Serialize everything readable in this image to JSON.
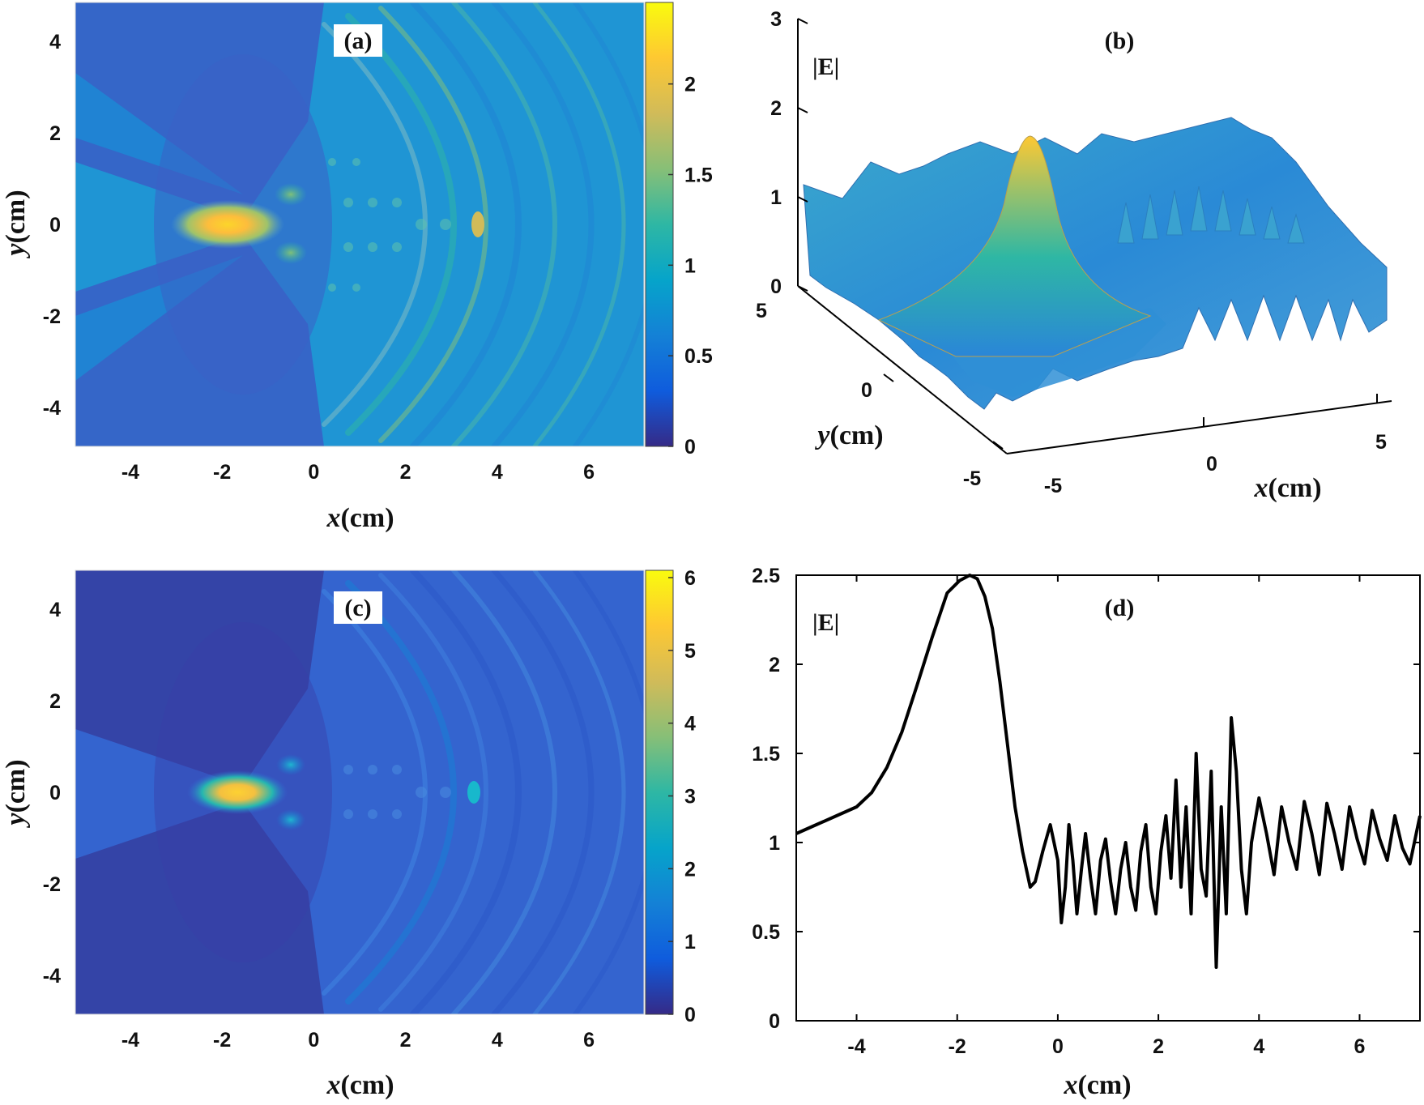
{
  "colors": {
    "parula": [
      "#352a87",
      "#0f5cdd",
      "#1481d6",
      "#06a4ca",
      "#2eb7a4",
      "#87bf77",
      "#d1bb59",
      "#fec832",
      "#f9fb0e"
    ],
    "line": "#000000",
    "label_bg": "#ffffff"
  },
  "chart_data": [
    {
      "id": "a",
      "type": "heatmap",
      "panel_label": "(a)",
      "xlabel_var": "x",
      "xlabel_unit": "(cm)",
      "ylabel_var": "y",
      "ylabel_unit": "(cm)",
      "xlim": [
        -5.2,
        7.2
      ],
      "ylim": [
        -4.85,
        4.85
      ],
      "xticks": [
        -4,
        -2,
        0,
        2,
        4,
        6
      ],
      "yticks": [
        -4,
        -2,
        0,
        2,
        4
      ],
      "clim": [
        0,
        2.45
      ],
      "colorbar_ticks": [
        0,
        0.5,
        1,
        1.5,
        2
      ],
      "focus_peak": {
        "x": -1.6,
        "y": 0,
        "value": 2.45
      }
    },
    {
      "id": "b",
      "type": "surface",
      "panel_label": "(b)",
      "zlabel": "|E|",
      "xlabel_var": "x",
      "xlabel_unit": "(cm)",
      "ylabel_var": "y",
      "ylabel_unit": "(cm)",
      "xticks": [
        -5,
        0,
        5
      ],
      "yticks": [
        -5,
        0,
        5
      ],
      "zticks": [
        0,
        1,
        2,
        3
      ],
      "zlim": [
        0,
        3
      ],
      "peak": {
        "x": -1.6,
        "y": 0,
        "value": 2.4
      }
    },
    {
      "id": "c",
      "type": "heatmap",
      "panel_label": "(c)",
      "xlabel_var": "x",
      "xlabel_unit": "(cm)",
      "ylabel_var": "y",
      "ylabel_unit": "(cm)",
      "xlim": [
        -5.2,
        7.2
      ],
      "ylim": [
        -4.85,
        4.85
      ],
      "xticks": [
        -4,
        -2,
        0,
        2,
        4,
        6
      ],
      "yticks": [
        -4,
        -2,
        0,
        2,
        4
      ],
      "clim": [
        0,
        6.1
      ],
      "colorbar_ticks": [
        0,
        1,
        2,
        3,
        4,
        5,
        6
      ],
      "focus_peak": {
        "x": -1.6,
        "y": 0,
        "value": 6.0
      }
    },
    {
      "id": "d",
      "type": "line",
      "panel_label": "(d)",
      "ylabel": "|E|",
      "xlabel_var": "x",
      "xlabel_unit": "(cm)",
      "xlim": [
        -5.2,
        7.2
      ],
      "ylim": [
        0,
        2.5
      ],
      "xticks": [
        -4,
        -2,
        0,
        2,
        4,
        6
      ],
      "yticks": [
        0,
        0.5,
        1,
        1.5,
        2,
        2.5
      ],
      "ytick_labels": [
        "0",
        "0.5",
        "1",
        "1.5",
        "2",
        "2.5"
      ],
      "series": [
        {
          "name": "|E|",
          "x": [
            -5.2,
            -4.8,
            -4.4,
            -4.0,
            -3.7,
            -3.4,
            -3.1,
            -2.8,
            -2.5,
            -2.2,
            -1.95,
            -1.75,
            -1.6,
            -1.45,
            -1.3,
            -1.15,
            -1.0,
            -0.85,
            -0.7,
            -0.55,
            -0.45,
            -0.3,
            -0.15,
            0.0,
            0.07,
            0.15,
            0.22,
            0.3,
            0.38,
            0.47,
            0.55,
            0.65,
            0.75,
            0.85,
            0.95,
            1.05,
            1.15,
            1.25,
            1.35,
            1.45,
            1.55,
            1.65,
            1.75,
            1.85,
            1.95,
            2.05,
            2.15,
            2.25,
            2.35,
            2.45,
            2.55,
            2.65,
            2.75,
            2.85,
            2.95,
            3.05,
            3.15,
            3.25,
            3.35,
            3.45,
            3.55,
            3.65,
            3.75,
            3.85,
            4.0,
            4.15,
            4.3,
            4.45,
            4.6,
            4.75,
            4.9,
            5.05,
            5.2,
            5.35,
            5.5,
            5.65,
            5.8,
            5.95,
            6.1,
            6.25,
            6.4,
            6.55,
            6.7,
            6.85,
            7.0,
            7.2
          ],
          "y": [
            1.05,
            1.1,
            1.15,
            1.2,
            1.28,
            1.42,
            1.62,
            1.88,
            2.15,
            2.4,
            2.47,
            2.5,
            2.48,
            2.38,
            2.2,
            1.9,
            1.55,
            1.2,
            0.95,
            0.75,
            0.78,
            0.95,
            1.1,
            0.9,
            0.55,
            0.75,
            1.1,
            0.9,
            0.6,
            0.85,
            1.05,
            0.8,
            0.6,
            0.9,
            1.02,
            0.78,
            0.6,
            0.85,
            1.0,
            0.75,
            0.62,
            0.95,
            1.1,
            0.75,
            0.6,
            0.95,
            1.15,
            0.8,
            1.35,
            0.75,
            1.2,
            0.6,
            1.5,
            0.85,
            0.7,
            1.4,
            0.3,
            1.2,
            0.6,
            1.7,
            1.4,
            0.85,
            0.6,
            1.0,
            1.25,
            1.05,
            0.82,
            1.2,
            1.0,
            0.85,
            1.23,
            1.05,
            0.82,
            1.22,
            1.05,
            0.85,
            1.2,
            1.02,
            0.88,
            1.18,
            1.02,
            0.9,
            1.15,
            0.97,
            0.88,
            1.15
          ]
        }
      ]
    }
  ]
}
